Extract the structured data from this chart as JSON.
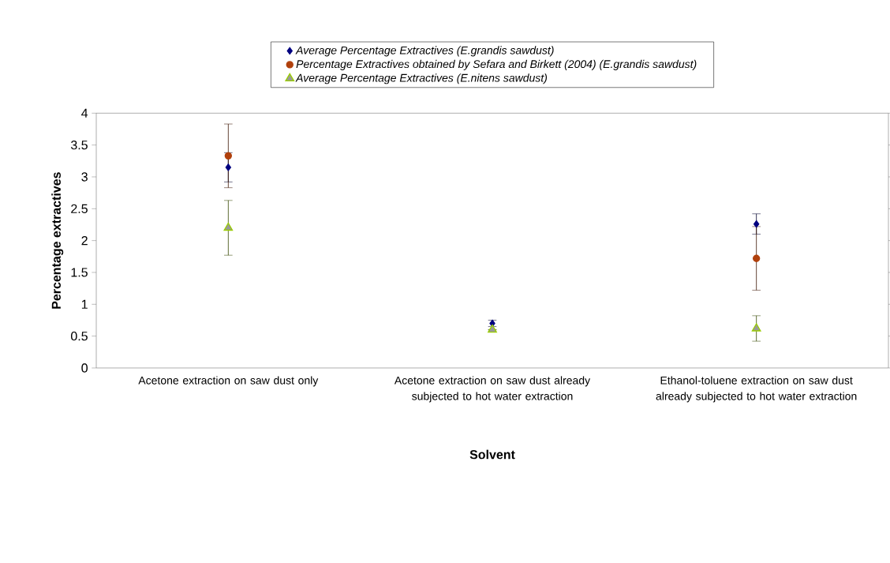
{
  "chart_data": {
    "type": "scatter",
    "xlabel": "Solvent",
    "ylabel": "Percentage extractives",
    "categories": [
      "Acetone extraction on saw dust only",
      "Acetone extraction on saw dust already subjected to hot water extraction",
      "Ethanol-toluene extraction on saw dust already subjected to hot water extraction"
    ],
    "series": [
      {
        "name": "Average Percentage Extractives (E.grandis sawdust)",
        "color": "#000080",
        "marker": "diamond",
        "values": [
          3.15,
          0.7,
          2.26
        ],
        "errors": [
          0.23,
          0.05,
          0.16
        ]
      },
      {
        "name": "Percentage Extractives obtained by Sefara and Birkett (2004) (E.grandis sawdust)",
        "color": "#b0400c",
        "marker": "circle",
        "values": [
          3.33,
          null,
          1.72
        ],
        "errors": [
          0.5,
          null,
          0.5
        ]
      },
      {
        "name": "Average Percentage Extractives (E.nitens sawdust)",
        "color": "#99cc00",
        "marker": "triangle",
        "values": [
          2.2,
          0.6,
          0.62
        ],
        "errors": [
          0.43,
          null,
          0.2
        ]
      }
    ],
    "ylim": [
      0,
      4
    ],
    "yticks": [
      0,
      0.5,
      1,
      1.5,
      2,
      2.5,
      3,
      3.5,
      4
    ],
    "grid": false,
    "legend": "top"
  }
}
